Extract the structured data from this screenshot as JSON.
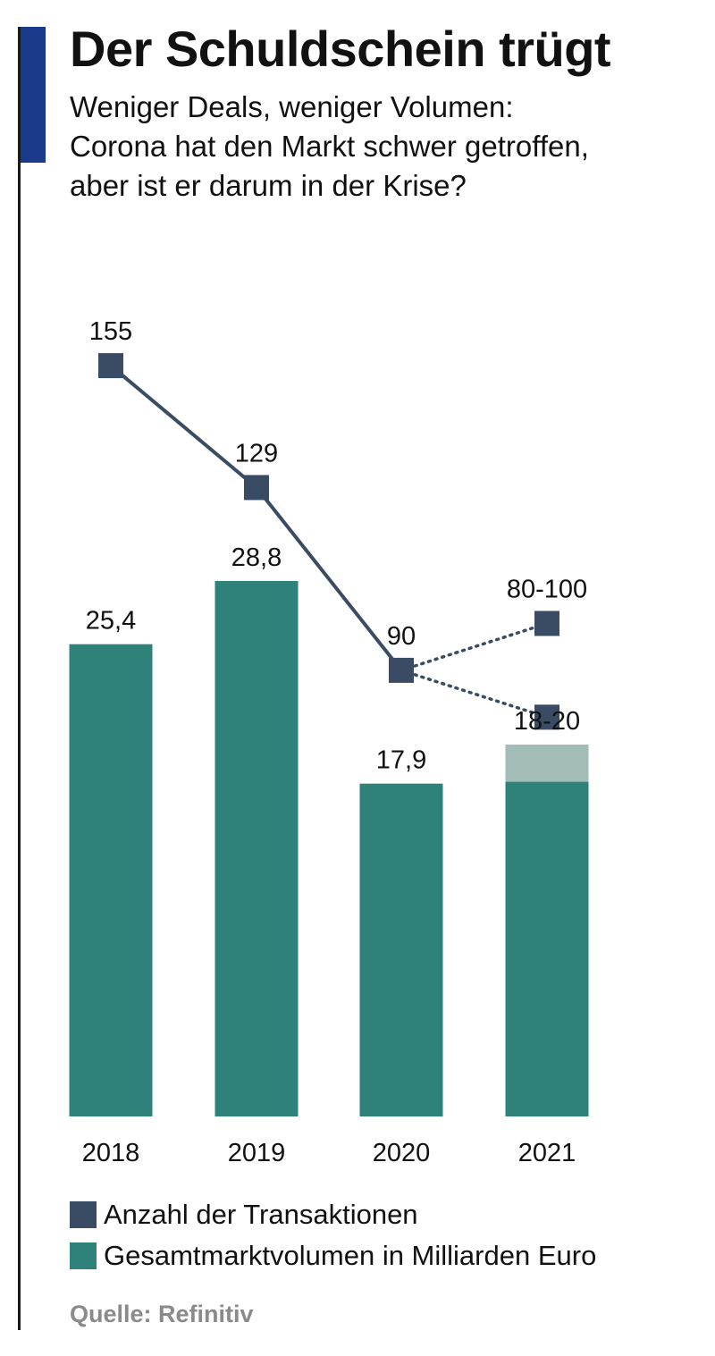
{
  "title": "Der Schuldschein trügt",
  "subtitle": "Weniger Deals, weniger Volumen:\nCorona hat den Markt schwer getroffen,\naber ist er darum in der Krise?",
  "source": "Quelle: Refinitiv",
  "legend": [
    {
      "label": "Anzahl der Transaktionen",
      "color": "#3a4c63"
    },
    {
      "label": "Gesamtmarktvolumen in Milliarden Euro",
      "color": "#2e8279"
    }
  ],
  "colors": {
    "bar": "#2e8279",
    "bar_range": "#a2bdb8",
    "line": "#3a4c63",
    "accent": "#1c3a8c"
  },
  "chart_data": {
    "type": "bar",
    "categories": [
      "2018",
      "2019",
      "2020",
      "2021"
    ],
    "series": [
      {
        "name": "Gesamtmarktvolumen in Milliarden Euro",
        "type": "bar",
        "values": [
          25.4,
          28.8,
          17.9,
          18
        ],
        "range_top": [
          null,
          null,
          null,
          20
        ],
        "labels": [
          "25,4",
          "28,8",
          "17,9",
          "18-20"
        ]
      },
      {
        "name": "Anzahl der Transaktionen",
        "type": "line",
        "values": [
          155,
          129,
          90,
          100
        ],
        "range_low": [
          null,
          null,
          null,
          80
        ],
        "projected": [
          false,
          false,
          false,
          true
        ],
        "labels": [
          "155",
          "129",
          "90",
          "80-100"
        ]
      }
    ]
  }
}
